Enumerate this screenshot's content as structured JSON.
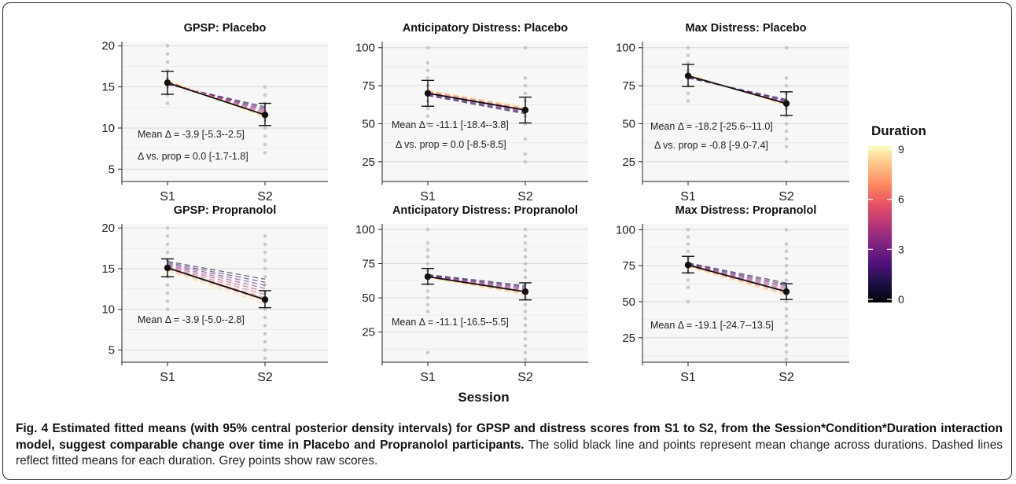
{
  "chart_data": [
    {
      "type": "line",
      "title": "GPSP: Placebo",
      "categories": [
        "S1",
        "S2"
      ],
      "ylim": [
        3.5,
        20.5
      ],
      "yticks": [
        5,
        10,
        15,
        20
      ],
      "mean": {
        "values": [
          15.5,
          11.6
        ],
        "ci_low": [
          14.1,
          10.3
        ],
        "ci_high": [
          16.9,
          13.0
        ]
      },
      "duration_lines": {
        "s1": [
          15.3,
          15.9
        ],
        "s2": [
          12.6,
          11.1
        ]
      },
      "raw_points": {
        "s1": [
          13,
          14,
          15,
          16,
          17,
          18,
          19,
          20
        ],
        "s2": [
          7,
          8,
          9,
          10,
          11,
          12,
          13,
          14,
          15
        ]
      },
      "annotations": [
        "Mean Δ = -3.9 [-5.3--2.5]",
        "Δ vs. prop = 0.0 [-1.7-1.8]"
      ]
    },
    {
      "type": "line",
      "title": "Anticipatory Distress: Placebo",
      "categories": [
        "S1",
        "S2"
      ],
      "ylim": [
        12,
        104
      ],
      "yticks": [
        25,
        50,
        75,
        100
      ],
      "mean": {
        "values": [
          70,
          59
        ],
        "ci_low": [
          61.5,
          50.5
        ],
        "ci_high": [
          78.5,
          67.5
        ]
      },
      "duration_lines": {
        "s1": [
          68.5,
          72.5
        ],
        "s2": [
          56.5,
          61.5
        ]
      },
      "raw_points": {
        "s1": [
          50,
          55,
          60,
          65,
          70,
          75,
          80,
          85,
          90,
          100
        ],
        "s2": [
          25,
          30,
          40,
          50,
          55,
          60,
          65,
          70,
          75,
          80,
          100
        ]
      },
      "annotations": [
        "Mean Δ = -11.1 [-18.4--3.8]",
        "Δ vs. prop = 0.0 [-8.5-8.5]"
      ]
    },
    {
      "type": "line",
      "title": "Max Distress: Placebo",
      "categories": [
        "S1",
        "S2"
      ],
      "ylim": [
        12,
        104
      ],
      "yticks": [
        25,
        50,
        75,
        100
      ],
      "mean": {
        "values": [
          81.5,
          63.3
        ],
        "ci_low": [
          74.5,
          55.5
        ],
        "ci_high": [
          89,
          71
        ]
      },
      "duration_lines": {
        "s1": [
          80,
          83
        ],
        "s2": [
          66,
          61.5
        ]
      },
      "raw_points": {
        "s1": [
          65,
          70,
          75,
          80,
          85,
          90,
          95,
          100
        ],
        "s2": [
          25,
          35,
          40,
          45,
          50,
          55,
          60,
          65,
          70,
          75,
          80,
          100
        ]
      },
      "annotations": [
        "Mean Δ = -18.2 [-25.6--11.0]",
        "Δ vs. prop = -0.8 [-9.0-7.4]"
      ]
    },
    {
      "type": "line",
      "title": "GPSP: Propranolol",
      "categories": [
        "S1",
        "S2"
      ],
      "ylim": [
        3.5,
        20.5
      ],
      "yticks": [
        5,
        10,
        15,
        20
      ],
      "mean": {
        "values": [
          15.1,
          11.2
        ],
        "ci_low": [
          14.0,
          10.2
        ],
        "ci_high": [
          16.2,
          12.3
        ]
      },
      "duration_lines": {
        "s1": [
          15.9,
          14.6
        ],
        "s2": [
          13.7,
          10.3
        ]
      },
      "raw_points": {
        "s1": [
          10,
          11,
          12,
          13,
          14,
          15,
          16,
          17,
          18,
          19,
          20
        ],
        "s2": [
          4,
          5,
          6,
          7,
          8,
          9,
          10,
          11,
          12,
          13,
          14,
          15,
          16,
          17,
          18,
          19
        ]
      },
      "annotations": [
        "Mean Δ = -3.9 [-5.0--2.8]"
      ]
    },
    {
      "type": "line",
      "title": "Anticipatory Distress: Propranolol",
      "categories": [
        "S1",
        "S2"
      ],
      "ylim": [
        3,
        104
      ],
      "yticks": [
        25,
        50,
        75,
        100
      ],
      "mean": {
        "values": [
          65.5,
          54.5
        ],
        "ci_low": [
          60,
          48.5
        ],
        "ci_high": [
          71.5,
          61
        ]
      },
      "duration_lines": {
        "s1": [
          67,
          64.5
        ],
        "s2": [
          59,
          51.5
        ]
      },
      "raw_points": {
        "s1": [
          10,
          40,
          45,
          50,
          55,
          60,
          65,
          70,
          75,
          80,
          85,
          90,
          100
        ],
        "s2": [
          5,
          10,
          15,
          20,
          25,
          30,
          35,
          40,
          45,
          50,
          55,
          60,
          65,
          70,
          75,
          80,
          85,
          90,
          95,
          100
        ]
      },
      "annotations": [
        "Mean Δ = -11.1 [-16.5--5.5]"
      ]
    },
    {
      "type": "line",
      "title": "Max Distress: Propranolol",
      "categories": [
        "S1",
        "S2"
      ],
      "ylim": [
        8,
        104
      ],
      "yticks": [
        25,
        50,
        75,
        100
      ],
      "mean": {
        "values": [
          75.5,
          57
        ],
        "ci_low": [
          70,
          51.5
        ],
        "ci_high": [
          81.5,
          62.5
        ]
      },
      "duration_lines": {
        "s1": [
          77,
          74
        ],
        "s2": [
          63,
          53
        ]
      },
      "raw_points": {
        "s1": [
          50,
          60,
          65,
          70,
          75,
          80,
          85,
          90,
          95,
          100
        ],
        "s2": [
          10,
          15,
          20,
          25,
          30,
          35,
          40,
          45,
          50,
          55,
          60,
          65,
          70,
          75,
          80,
          85,
          90,
          100
        ]
      },
      "annotations": [
        "Mean Δ = -19.1 [-24.7--13.5]"
      ]
    }
  ],
  "x_axis_title": "Session",
  "legend": {
    "title": "Duration",
    "min": 0,
    "max": 9,
    "ticks": [
      0,
      3,
      6,
      9
    ]
  },
  "colors": {
    "mean_line": "#111111",
    "raw_point": "#bbbbbb",
    "panel_bg": "#f7f7f7",
    "grid": "#d9d9d9"
  },
  "caption": {
    "label": "Fig. 4",
    "bold": "Estimated fitted means (with 95% central posterior density intervals) for GPSP and distress scores from S1 to S2, from the Session*Condition*Duration interaction model, suggest comparable change over time in Placebo and Propranolol participants.",
    "text": "The solid black line and points represent mean change across durations. Dashed lines reflect fitted means for each duration. Grey points show raw scores."
  }
}
